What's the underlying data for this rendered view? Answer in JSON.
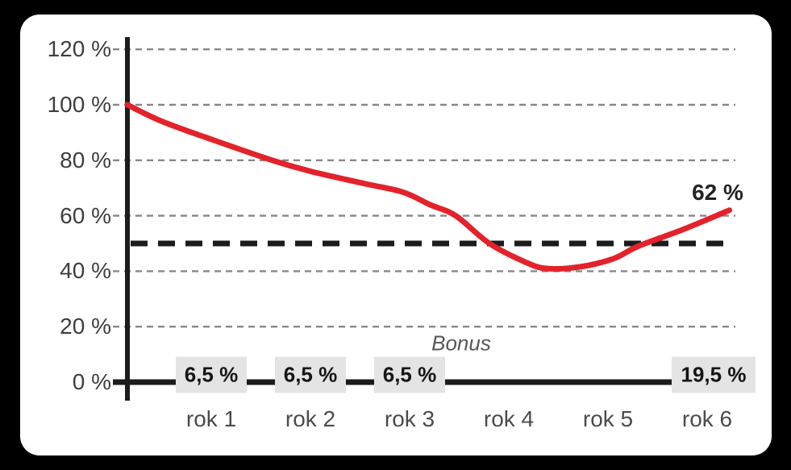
{
  "chart_data": {
    "type": "line",
    "language": "cs",
    "x_tick_labels": [
      "rok 1",
      "rok 2",
      "rok 3",
      "rok 4",
      "rok 5",
      "rok 6"
    ],
    "y_tick_labels": [
      "120 %",
      "100 %",
      "80 %",
      "60 %",
      "40 %",
      "20 %",
      "0 %"
    ],
    "y_tick_values": [
      120,
      100,
      80,
      60,
      40,
      20,
      0
    ],
    "ylim": [
      0,
      120
    ],
    "grid": "horizontal dashed gridlines at every 20 %",
    "legend_position": "none",
    "series": [
      {
        "name": "value-curve",
        "color": "#e3222b",
        "x_unit": "years from start (axis = 0)",
        "points": [
          [
            0,
            100
          ],
          [
            0.35,
            94
          ],
          [
            0.85,
            87.5
          ],
          [
            1.46,
            80
          ],
          [
            1.85,
            76
          ],
          [
            2.4,
            71.5
          ],
          [
            2.78,
            68.5
          ],
          [
            3.05,
            64
          ],
          [
            3.31,
            60
          ],
          [
            3.65,
            50
          ],
          [
            4.0,
            43.5
          ],
          [
            4.22,
            41
          ],
          [
            4.55,
            41.5
          ],
          [
            4.9,
            44.5
          ],
          [
            5.15,
            49
          ],
          [
            5.6,
            55
          ],
          [
            6.07,
            62
          ]
        ]
      }
    ],
    "reference_line": {
      "value": 50,
      "style": "bold black dashed",
      "color": "#1c1c1c"
    },
    "end_label": "62 %",
    "bonus_label": "Bonus",
    "bonus_boxes": [
      {
        "x_index": 1,
        "label": "6,5 %"
      },
      {
        "x_index": 2,
        "label": "6,5 %"
      },
      {
        "x_index": 3,
        "label": "6,5 %"
      },
      {
        "x_index": 6,
        "label": "19,5 %"
      }
    ]
  },
  "colors": {
    "frame_background": "#000000",
    "card_background": "#ffffff",
    "gridline": "#878787",
    "axis": "#1c1c1c",
    "curve": "#e3222b",
    "bonus_box_fill": "#e4e4e4",
    "y_label_text": "#3e3e3e",
    "x_label_text": "#4b4b4b",
    "bonus_text": "#575757",
    "end_label_text": "#222222"
  }
}
